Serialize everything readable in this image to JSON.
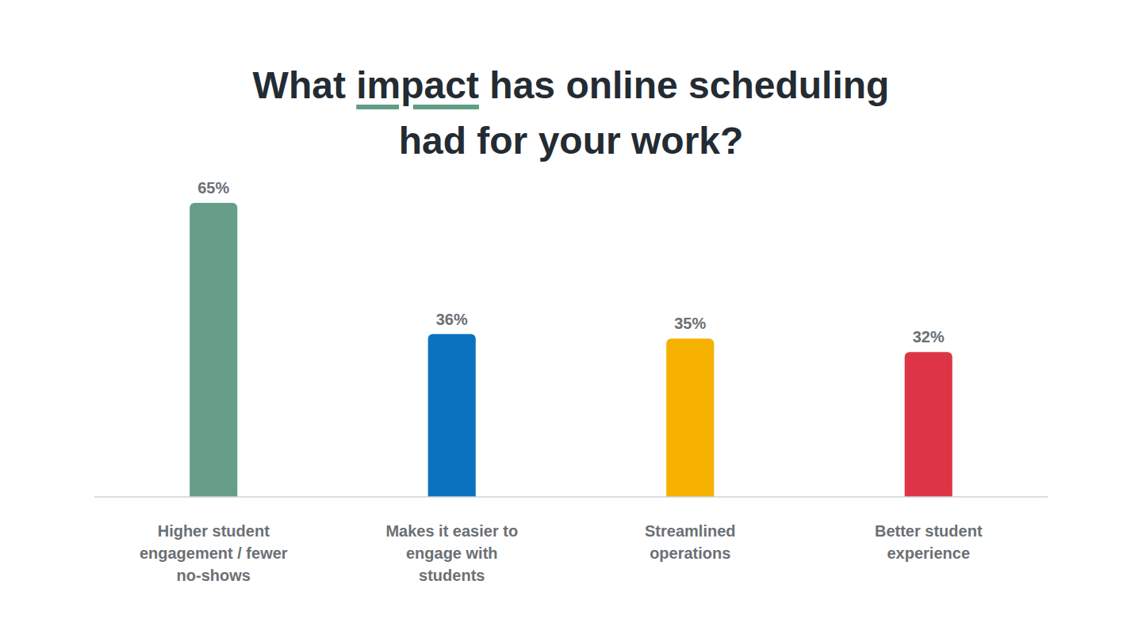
{
  "chart_data": {
    "type": "bar",
    "title": "What impact has online scheduling had for your work?",
    "categories": [
      "Higher student engagement / fewer no-shows",
      "Makes it easier to engage with students",
      "Streamlined operations",
      "Better student experience"
    ],
    "values": [
      65,
      36,
      35,
      32
    ],
    "value_labels": [
      "65%",
      "36%",
      "35%",
      "32%"
    ],
    "colors": [
      "#669e87",
      "#0b72c0",
      "#f5b000",
      "#dd3546"
    ],
    "ylim": [
      0,
      65
    ],
    "data_labels": true,
    "tick_labels": "x",
    "grid": false
  }
}
